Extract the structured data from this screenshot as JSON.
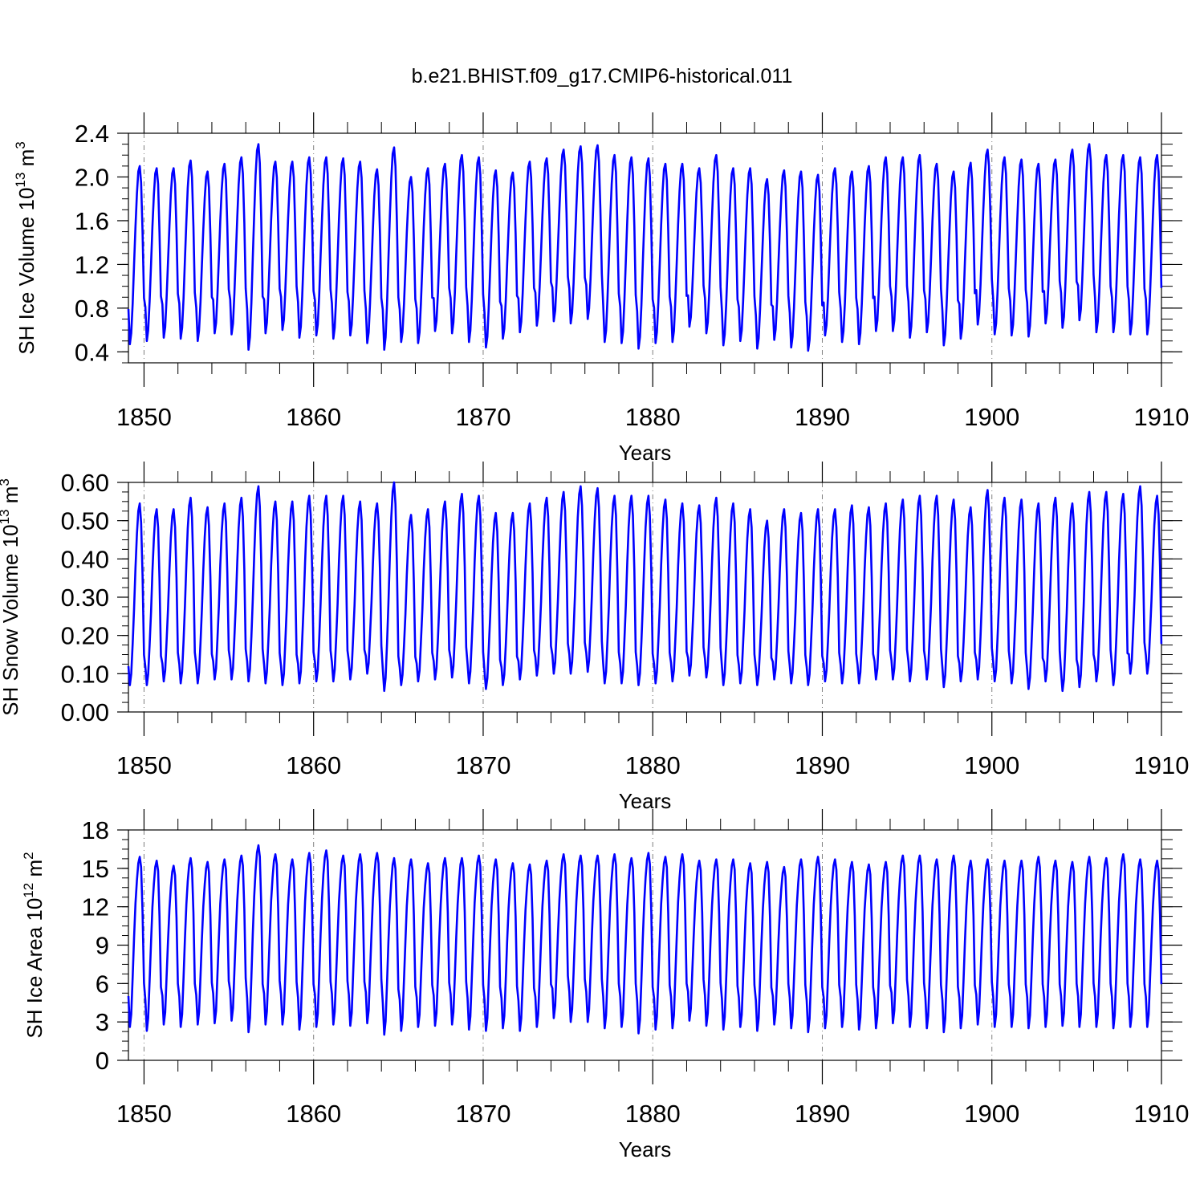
{
  "title": "b.e21.BHIST.f09_g17.CMIP6-historical.011",
  "colors": {
    "line": "#0000ff",
    "axes": "#000000",
    "grid": "#7f7f7f"
  },
  "chart_data": [
    {
      "type": "line",
      "xlabel": "Years",
      "ylabel": {
        "text": "SH Ice Volume 10",
        "exp": "13",
        "unit": " m",
        "unit_exp": "3"
      },
      "xlim": [
        1849.08,
        1910.0
      ],
      "ylim": [
        0.3,
        2.4
      ],
      "xticks": [
        1850,
        1860,
        1870,
        1880,
        1890,
        1900,
        1910
      ],
      "yticks": [
        {
          "v": 0.4,
          "label": "0.4"
        },
        {
          "v": 0.8,
          "label": "0.8"
        },
        {
          "v": 1.2,
          "label": "1.2"
        },
        {
          "v": 1.6,
          "label": "1.6"
        },
        {
          "v": 2.0,
          "label": "2.0"
        },
        {
          "v": 2.4,
          "label": "2.4"
        }
      ],
      "grid": "vertical dashed at decade ticks",
      "series": [
        {
          "start_year": 1849.08,
          "monthly_pattern": [
            0.8,
            0.48,
            0.58,
            0.85,
            1.2,
            1.55,
            1.85,
            2.05,
            2.1,
            1.95,
            1.5,
            0.9
          ],
          "annual_max": [
            2.1,
            2.08,
            2.08,
            2.15,
            2.05,
            2.12,
            2.18,
            2.3,
            2.14,
            2.14,
            2.18,
            2.18,
            2.17,
            2.14,
            2.07,
            2.27,
            2.0,
            2.08,
            2.12,
            2.2,
            2.18,
            2.06,
            2.04,
            2.14,
            2.17,
            2.25,
            2.28,
            2.29,
            2.2,
            2.18,
            2.17,
            2.12,
            2.12,
            2.08,
            2.2,
            2.08,
            2.08,
            1.98,
            2.06,
            2.05,
            2.02,
            2.08,
            2.05,
            2.1,
            2.18,
            2.18,
            2.2,
            2.12,
            2.05,
            2.13,
            2.25,
            2.18,
            2.16,
            2.12,
            2.16,
            2.25,
            2.3,
            2.2,
            2.2,
            2.18,
            2.2
          ],
          "annual_min": [
            0.47,
            0.5,
            0.53,
            0.52,
            0.5,
            0.57,
            0.56,
            0.42,
            0.57,
            0.6,
            0.53,
            0.55,
            0.52,
            0.55,
            0.48,
            0.42,
            0.49,
            0.48,
            0.59,
            0.57,
            0.49,
            0.44,
            0.52,
            0.58,
            0.64,
            0.68,
            0.66,
            0.7,
            0.49,
            0.48,
            0.43,
            0.48,
            0.49,
            0.63,
            0.57,
            0.46,
            0.5,
            0.43,
            0.51,
            0.44,
            0.41,
            0.55,
            0.49,
            0.47,
            0.59,
            0.59,
            0.53,
            0.58,
            0.46,
            0.52,
            0.65,
            0.56,
            0.55,
            0.54,
            0.66,
            0.62,
            0.69,
            0.58,
            0.58,
            0.56,
            0.56
          ]
        }
      ]
    },
    {
      "type": "line",
      "xlabel": "Years",
      "ylabel": {
        "text": "SH Snow Volume 10",
        "exp": "13",
        "unit": " m",
        "unit_exp": "3"
      },
      "xlim": [
        1849.08,
        1910.0
      ],
      "ylim": [
        0.0,
        0.6
      ],
      "xticks": [
        1850,
        1860,
        1870,
        1880,
        1890,
        1900,
        1910
      ],
      "yticks": [
        {
          "v": 0.0,
          "label": "0.00"
        },
        {
          "v": 0.1,
          "label": "0.10"
        },
        {
          "v": 0.2,
          "label": "0.20"
        },
        {
          "v": 0.3,
          "label": "0.30"
        },
        {
          "v": 0.4,
          "label": "0.40"
        },
        {
          "v": 0.5,
          "label": "0.50"
        },
        {
          "v": 0.6,
          "label": "0.60"
        }
      ],
      "grid": "vertical dashed at decade ticks",
      "series": [
        {
          "start_year": 1849.08,
          "monthly_pattern": [
            0.12,
            0.07,
            0.1,
            0.18,
            0.27,
            0.38,
            0.47,
            0.53,
            0.55,
            0.5,
            0.36,
            0.15
          ],
          "annual_max": [
            0.545,
            0.53,
            0.53,
            0.56,
            0.535,
            0.545,
            0.56,
            0.59,
            0.55,
            0.55,
            0.565,
            0.565,
            0.565,
            0.55,
            0.545,
            0.6,
            0.515,
            0.53,
            0.55,
            0.57,
            0.565,
            0.52,
            0.52,
            0.545,
            0.56,
            0.575,
            0.59,
            0.585,
            0.565,
            0.565,
            0.565,
            0.555,
            0.545,
            0.54,
            0.56,
            0.545,
            0.53,
            0.5,
            0.53,
            0.52,
            0.53,
            0.53,
            0.54,
            0.535,
            0.545,
            0.555,
            0.565,
            0.565,
            0.555,
            0.535,
            0.58,
            0.56,
            0.555,
            0.545,
            0.56,
            0.545,
            0.575,
            0.575,
            0.57,
            0.59,
            0.565
          ],
          "annual_max_note": "",
          "annual_min": [
            0.07,
            0.07,
            0.08,
            0.075,
            0.075,
            0.085,
            0.085,
            0.08,
            0.075,
            0.07,
            0.075,
            0.08,
            0.08,
            0.085,
            0.1,
            0.055,
            0.07,
            0.08,
            0.085,
            0.09,
            0.075,
            0.06,
            0.07,
            0.085,
            0.095,
            0.1,
            0.1,
            0.105,
            0.075,
            0.075,
            0.07,
            0.075,
            0.08,
            0.095,
            0.09,
            0.07,
            0.075,
            0.07,
            0.085,
            0.075,
            0.07,
            0.08,
            0.075,
            0.075,
            0.085,
            0.085,
            0.08,
            0.085,
            0.065,
            0.08,
            0.085,
            0.08,
            0.075,
            0.06,
            0.08,
            0.055,
            0.065,
            0.08,
            0.07,
            0.1,
            0.1
          ]
        }
      ]
    },
    {
      "type": "line",
      "xlabel": "Years",
      "ylabel": {
        "text": "SH Ice Area 10",
        "exp": "12",
        "unit": " m",
        "unit_exp": "2"
      },
      "xlim": [
        1849.08,
        1910.0
      ],
      "ylim": [
        0,
        18
      ],
      "xticks": [
        1850,
        1860,
        1870,
        1880,
        1890,
        1900,
        1910
      ],
      "yticks": [
        {
          "v": 0,
          "label": "0"
        },
        {
          "v": 3,
          "label": "3"
        },
        {
          "v": 6,
          "label": "6"
        },
        {
          "v": 9,
          "label": "9"
        },
        {
          "v": 12,
          "label": "12"
        },
        {
          "v": 15,
          "label": "15"
        },
        {
          "v": 18,
          "label": "18"
        }
      ],
      "grid": "vertical dashed at decade ticks",
      "series": [
        {
          "start_year": 1849.08,
          "monthly_pattern": [
            5.0,
            2.6,
            3.6,
            6.5,
            9.5,
            12.2,
            14.0,
            15.3,
            15.8,
            15.0,
            11.5,
            6.0
          ],
          "annual_max": [
            15.9,
            15.6,
            15.2,
            15.8,
            15.5,
            15.7,
            16.0,
            16.8,
            16.1,
            15.7,
            16.2,
            16.4,
            16.0,
            16.1,
            16.2,
            15.8,
            15.7,
            15.4,
            15.8,
            15.8,
            16.0,
            15.7,
            15.4,
            15.3,
            15.6,
            16.1,
            16.0,
            16.0,
            16.1,
            15.8,
            16.2,
            15.9,
            16.1,
            15.6,
            15.7,
            15.7,
            15.4,
            15.5,
            15.1,
            15.7,
            15.9,
            15.7,
            15.5,
            15.3,
            15.5,
            16.0,
            16.0,
            15.7,
            16.0,
            15.6,
            15.7,
            15.6,
            15.6,
            15.9,
            15.6,
            15.5,
            15.9,
            15.8,
            16.1,
            15.7,
            15.6
          ],
          "annual_min": [
            2.6,
            2.3,
            2.8,
            2.6,
            2.8,
            2.9,
            3.1,
            2.2,
            2.8,
            2.8,
            2.4,
            2.6,
            2.8,
            2.7,
            2.9,
            2.0,
            2.3,
            2.6,
            2.7,
            2.8,
            2.4,
            2.3,
            2.5,
            2.3,
            2.6,
            3.3,
            3.0,
            3.0,
            2.5,
            2.6,
            2.1,
            2.4,
            2.5,
            3.1,
            2.7,
            2.4,
            2.6,
            2.3,
            2.8,
            2.5,
            2.2,
            2.5,
            2.6,
            2.4,
            2.5,
            2.9,
            2.6,
            2.5,
            2.2,
            2.5,
            2.8,
            2.6,
            2.6,
            2.5,
            2.6,
            2.7,
            2.6,
            2.6,
            2.5,
            2.6,
            2.6
          ]
        }
      ]
    }
  ]
}
